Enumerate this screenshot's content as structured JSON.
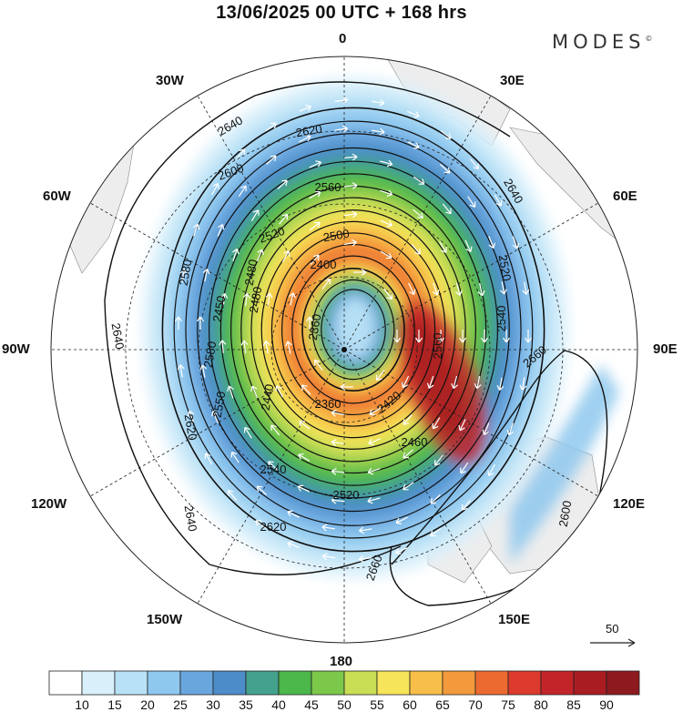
{
  "title": "13/06/2025  00 UTC  + 168 hrs",
  "brand": "MODES",
  "brand_mark": "©",
  "longitude_labels": {
    "n": "0",
    "ne": "30E",
    "e60": "60E",
    "e90": "90E",
    "e120": "120E",
    "e150": "150E",
    "s": "180",
    "w150": "150W",
    "w120": "120W",
    "w90": "90W",
    "w60": "60W",
    "w30": "30W"
  },
  "contour_labels": [
    "2640",
    "2620",
    "2600",
    "2560",
    "2480",
    "2520",
    "2640",
    "2520",
    "2400",
    "2360",
    "2500",
    "2540",
    "2580",
    "2640",
    "2660",
    "2620",
    "2550",
    "2360",
    "2420",
    "2460",
    "2520",
    "2540",
    "2620",
    "2640",
    "2660",
    "2600",
    "2580",
    "2480",
    "2450",
    "2440",
    "2560"
  ],
  "reference_vector": {
    "value": "50"
  },
  "colorbar": {
    "labels": [
      "10",
      "15",
      "20",
      "25",
      "30",
      "35",
      "40",
      "45",
      "50",
      "55",
      "60",
      "65",
      "70",
      "75",
      "80",
      "85",
      "90"
    ],
    "colors": [
      "#ffffff",
      "#d9f0fb",
      "#b9e1f6",
      "#8ec8ef",
      "#6aa6de",
      "#4c8cc8",
      "#44a18e",
      "#4cb74a",
      "#7cc84b",
      "#c9dd55",
      "#f6e45a",
      "#f7be49",
      "#f39a3c",
      "#ec6a30",
      "#dc3a2c",
      "#c2242a",
      "#a81c22",
      "#8c1a1e"
    ]
  },
  "map_colors": {
    "land": "#ededed",
    "coast": "#888888",
    "contour": "#111111",
    "arrow": "#ffffff"
  }
}
